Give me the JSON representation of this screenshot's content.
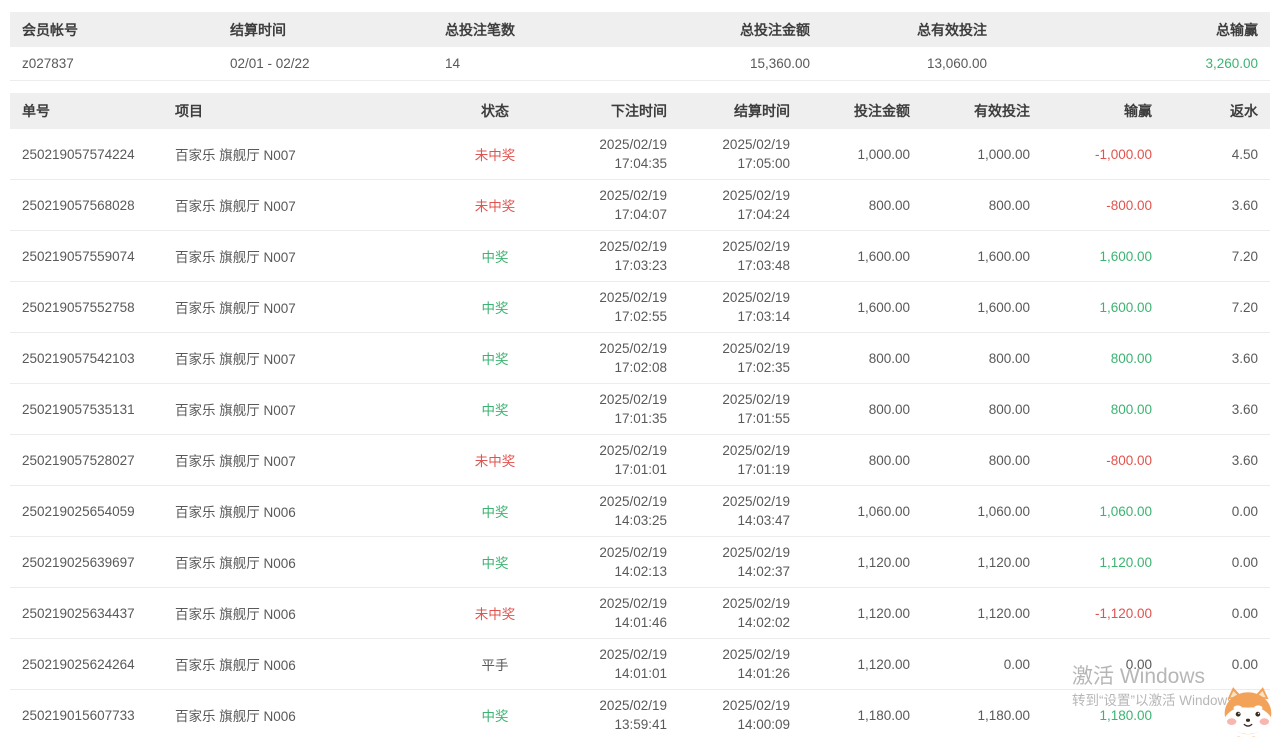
{
  "colors": {
    "green": "#3cb371",
    "red": "#e0534e",
    "header_bg": "#efefef"
  },
  "summary": {
    "columns": [
      "会员帐号",
      "结算时间",
      "总投注笔数",
      "总投注金额",
      "总有效投注",
      "总输赢"
    ],
    "row": {
      "account": "z027837",
      "period": "02/01 - 02/22",
      "total_count": "14",
      "total_amount": "15,360.00",
      "total_valid": "13,060.00",
      "total_winloss": "3,260.00"
    }
  },
  "detail": {
    "columns": [
      "单号",
      "项目",
      "状态",
      "下注时间",
      "结算时间",
      "投注金额",
      "有效投注",
      "输赢",
      "返水"
    ],
    "rows": [
      {
        "order_no": "250219057574224",
        "game": "百家乐 旗舰厅 N007",
        "status": "未中奖",
        "status_type": "lose",
        "bet_date": "2025/02/19",
        "bet_time": "17:04:35",
        "settle_date": "2025/02/19",
        "settle_time": "17:05:00",
        "bet_amount": "1,000.00",
        "valid_amount": "1,000.00",
        "winloss": "-1,000.00",
        "winloss_type": "neg",
        "rebate": "4.50"
      },
      {
        "order_no": "250219057568028",
        "game": "百家乐 旗舰厅 N007",
        "status": "未中奖",
        "status_type": "lose",
        "bet_date": "2025/02/19",
        "bet_time": "17:04:07",
        "settle_date": "2025/02/19",
        "settle_time": "17:04:24",
        "bet_amount": "800.00",
        "valid_amount": "800.00",
        "winloss": "-800.00",
        "winloss_type": "neg",
        "rebate": "3.60"
      },
      {
        "order_no": "250219057559074",
        "game": "百家乐 旗舰厅 N007",
        "status": "中奖",
        "status_type": "win",
        "bet_date": "2025/02/19",
        "bet_time": "17:03:23",
        "settle_date": "2025/02/19",
        "settle_time": "17:03:48",
        "bet_amount": "1,600.00",
        "valid_amount": "1,600.00",
        "winloss": "1,600.00",
        "winloss_type": "pos",
        "rebate": "7.20"
      },
      {
        "order_no": "250219057552758",
        "game": "百家乐 旗舰厅 N007",
        "status": "中奖",
        "status_type": "win",
        "bet_date": "2025/02/19",
        "bet_time": "17:02:55",
        "settle_date": "2025/02/19",
        "settle_time": "17:03:14",
        "bet_amount": "1,600.00",
        "valid_amount": "1,600.00",
        "winloss": "1,600.00",
        "winloss_type": "pos",
        "rebate": "7.20"
      },
      {
        "order_no": "250219057542103",
        "game": "百家乐 旗舰厅 N007",
        "status": "中奖",
        "status_type": "win",
        "bet_date": "2025/02/19",
        "bet_time": "17:02:08",
        "settle_date": "2025/02/19",
        "settle_time": "17:02:35",
        "bet_amount": "800.00",
        "valid_amount": "800.00",
        "winloss": "800.00",
        "winloss_type": "pos",
        "rebate": "3.60"
      },
      {
        "order_no": "250219057535131",
        "game": "百家乐 旗舰厅 N007",
        "status": "中奖",
        "status_type": "win",
        "bet_date": "2025/02/19",
        "bet_time": "17:01:35",
        "settle_date": "2025/02/19",
        "settle_time": "17:01:55",
        "bet_amount": "800.00",
        "valid_amount": "800.00",
        "winloss": "800.00",
        "winloss_type": "pos",
        "rebate": "3.60"
      },
      {
        "order_no": "250219057528027",
        "game": "百家乐 旗舰厅 N007",
        "status": "未中奖",
        "status_type": "lose",
        "bet_date": "2025/02/19",
        "bet_time": "17:01:01",
        "settle_date": "2025/02/19",
        "settle_time": "17:01:19",
        "bet_amount": "800.00",
        "valid_amount": "800.00",
        "winloss": "-800.00",
        "winloss_type": "neg",
        "rebate": "3.60"
      },
      {
        "order_no": "250219025654059",
        "game": "百家乐 旗舰厅 N006",
        "status": "中奖",
        "status_type": "win",
        "bet_date": "2025/02/19",
        "bet_time": "14:03:25",
        "settle_date": "2025/02/19",
        "settle_time": "14:03:47",
        "bet_amount": "1,060.00",
        "valid_amount": "1,060.00",
        "winloss": "1,060.00",
        "winloss_type": "pos",
        "rebate": "0.00"
      },
      {
        "order_no": "250219025639697",
        "game": "百家乐 旗舰厅 N006",
        "status": "中奖",
        "status_type": "win",
        "bet_date": "2025/02/19",
        "bet_time": "14:02:13",
        "settle_date": "2025/02/19",
        "settle_time": "14:02:37",
        "bet_amount": "1,120.00",
        "valid_amount": "1,120.00",
        "winloss": "1,120.00",
        "winloss_type": "pos",
        "rebate": "0.00"
      },
      {
        "order_no": "250219025634437",
        "game": "百家乐 旗舰厅 N006",
        "status": "未中奖",
        "status_type": "lose",
        "bet_date": "2025/02/19",
        "bet_time": "14:01:46",
        "settle_date": "2025/02/19",
        "settle_time": "14:02:02",
        "bet_amount": "1,120.00",
        "valid_amount": "1,120.00",
        "winloss": "-1,120.00",
        "winloss_type": "neg",
        "rebate": "0.00"
      },
      {
        "order_no": "250219025624264",
        "game": "百家乐 旗舰厅 N006",
        "status": "平手",
        "status_type": "tie",
        "bet_date": "2025/02/19",
        "bet_time": "14:01:01",
        "settle_date": "2025/02/19",
        "settle_time": "14:01:26",
        "bet_amount": "1,120.00",
        "valid_amount": "0.00",
        "winloss": "0.00",
        "winloss_type": "zero",
        "rebate": "0.00"
      },
      {
        "order_no": "250219015607733",
        "game": "百家乐 旗舰厅 N006",
        "status": "中奖",
        "status_type": "win",
        "bet_date": "2025/02/19",
        "bet_time": "13:59:41",
        "settle_date": "2025/02/19",
        "settle_time": "14:00:09",
        "bet_amount": "1,180.00",
        "valid_amount": "1,180.00",
        "winloss": "1,180.00",
        "winloss_type": "pos",
        "rebate": "0.00"
      }
    ]
  },
  "watermark": {
    "line1": "激活 Windows",
    "line2": "转到“设置”以激活 Windows。"
  }
}
